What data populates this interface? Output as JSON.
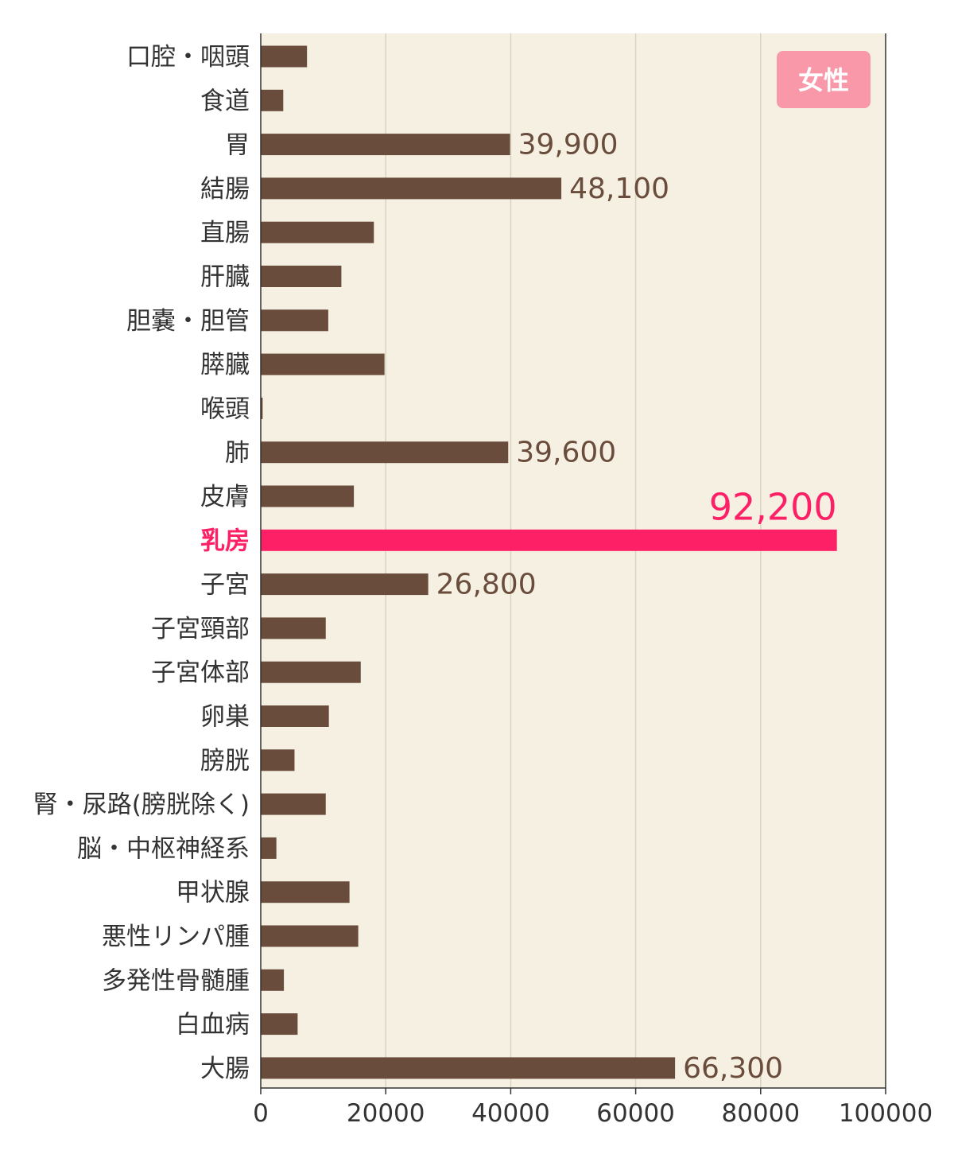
{
  "chart_data": {
    "type": "bar",
    "orientation": "horizontal",
    "categories": [
      "口腔・咽頭",
      "食道",
      "胃",
      "結腸",
      "直腸",
      "肝臓",
      "胆嚢・胆管",
      "膵臓",
      "喉頭",
      "肺",
      "皮膚",
      "乳房",
      "子宮",
      "子宮頸部",
      "子宮体部",
      "卵巣",
      "膀胱",
      "腎・尿路(膀胱除く)",
      "脳・中枢神経系",
      "甲状腺",
      "悪性リンパ腫",
      "多発性骨髄腫",
      "白血病",
      "大腸"
    ],
    "values": [
      7400,
      3600,
      39900,
      48100,
      18100,
      12900,
      10800,
      19800,
      300,
      39600,
      14900,
      92200,
      26800,
      10400,
      16000,
      10900,
      5400,
      10400,
      2500,
      14200,
      15600,
      3700,
      5900,
      66300
    ],
    "data_labels": [
      "",
      "",
      "39,900",
      "48,100",
      "",
      "",
      "",
      "",
      "",
      "39,600",
      "",
      "92,200",
      "26,800",
      "",
      "",
      "",
      "",
      "",
      "",
      "",
      "",
      "",
      "",
      "66,300"
    ],
    "highlight_category": "乳房",
    "xlim": [
      0,
      100000
    ],
    "xticks": [
      "0",
      "20000",
      "40000",
      "60000",
      "80000",
      "100000"
    ],
    "grid": "vertical",
    "legend": {
      "label": "女性",
      "placement": "top-right"
    },
    "colors": {
      "bar": "#6a4c3c",
      "highlight": "#fe2066",
      "background": "#f5f0e1",
      "grid": "#d9d3c3",
      "axis": "#333333",
      "value_text": "#6a4c3c",
      "legend_bg": "#f898a8",
      "legend_text": "#ffffff"
    }
  }
}
